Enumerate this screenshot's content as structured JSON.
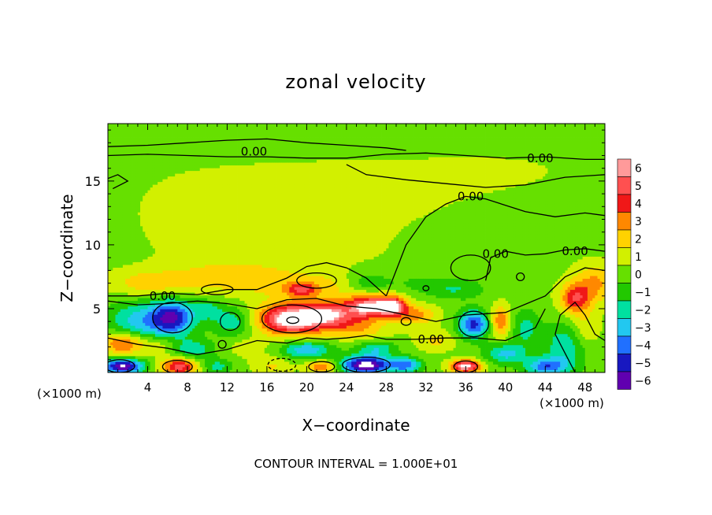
{
  "chart_data": {
    "type": "heatmap",
    "title": "zonal velocity",
    "xlabel": "X−coordinate",
    "ylabel": "Z−coordinate",
    "x_unit_label_left": "(×1000 m)",
    "x_unit_label_right": "(×1000 m)",
    "xlim": [
      0,
      50
    ],
    "ylim": [
      0,
      19.5
    ],
    "x_ticks": [
      4,
      8,
      12,
      16,
      20,
      24,
      28,
      32,
      36,
      40,
      44,
      48
    ],
    "y_ticks": [
      5,
      10,
      15
    ],
    "footer": "CONTOUR INTERVAL = 1.000E+01",
    "colorbar": {
      "levels": [
        6,
        5,
        4,
        3,
        2,
        1,
        0,
        -1,
        -2,
        -3,
        -4,
        -5,
        -6
      ],
      "labels": [
        "6",
        "5",
        "4",
        "3",
        "2",
        "1",
        "0",
        "−1",
        "−2",
        "−3",
        "−4",
        "−5",
        "−6"
      ],
      "colors": [
        "#ff9a9a",
        "#ff5050",
        "#f01818",
        "#ff8800",
        "#ffd200",
        "#d2f000",
        "#66e000",
        "#22c800",
        "#00e0a0",
        "#22c8f0",
        "#2070ff",
        "#1818c0",
        "#6000b0"
      ]
    },
    "contour_label": "0.00",
    "contour_labels": [
      {
        "x": 14.7,
        "z": 17.3,
        "text": "0.00"
      },
      {
        "x": 43.5,
        "z": 16.8,
        "text": "0.00"
      },
      {
        "x": 36.5,
        "z": 13.8,
        "text": "0.00"
      },
      {
        "x": 39.0,
        "z": 9.3,
        "text": "0.00"
      },
      {
        "x": 47.0,
        "z": 9.5,
        "text": "0.00"
      },
      {
        "x": 5.5,
        "z": 6.0,
        "text": "0.00"
      },
      {
        "x": 32.5,
        "z": 2.6,
        "text": "0.00"
      }
    ],
    "features": [
      {
        "x": 25,
        "z": 9,
        "rx": 28,
        "rz": 8,
        "v": 0.4
      },
      {
        "x": 15,
        "z": 11,
        "rx": 10,
        "rz": 4,
        "v": 0.6
      },
      {
        "x": 8,
        "z": 13,
        "rx": 6,
        "rz": 3,
        "v": 0.3
      },
      {
        "x": 22,
        "z": 14.5,
        "rx": 14,
        "rz": 2.5,
        "v": 0.5
      },
      {
        "x": 40,
        "z": 16,
        "rx": 12,
        "rz": 2,
        "v": 0.4
      },
      {
        "x": 12,
        "z": 7.5,
        "rx": 6,
        "rz": 1.2,
        "v": 1.6
      },
      {
        "x": 4,
        "z": 7,
        "rx": 4,
        "rz": 1,
        "v": 1.8
      },
      {
        "x": 21,
        "z": 6.8,
        "rx": 6,
        "rz": 1,
        "v": 1.5
      },
      {
        "x": 30,
        "z": 7.0,
        "rx": 6,
        "rz": 1,
        "v": -1.0
      },
      {
        "x": 26,
        "z": 6.8,
        "rx": 2,
        "rz": 1,
        "v": -1.8
      },
      {
        "x": 35,
        "z": 6.5,
        "rx": 3,
        "rz": 0.8,
        "v": -1.5
      },
      {
        "x": 49,
        "z": 7,
        "rx": 2,
        "rz": 1.5,
        "v": 2.5
      },
      {
        "x": 47,
        "z": 5.8,
        "rx": 1.5,
        "rz": 1.2,
        "v": 4
      },
      {
        "x": 6.5,
        "z": 4.3,
        "rx": 2.2,
        "rz": 1.4,
        "v": -5.5
      },
      {
        "x": 3,
        "z": 4,
        "rx": 3,
        "rz": 1.6,
        "v": -3
      },
      {
        "x": 12.5,
        "z": 4,
        "rx": 2,
        "rz": 1.2,
        "v": -2.5
      },
      {
        "x": 10,
        "z": 5,
        "rx": 1.5,
        "rz": 0.8,
        "v": -2
      },
      {
        "x": 18.5,
        "z": 4.2,
        "rx": 3.3,
        "rz": 1.2,
        "v": 7
      },
      {
        "x": 19.5,
        "z": 6.5,
        "rx": 1.5,
        "rz": 0.5,
        "v": 3
      },
      {
        "x": 22.5,
        "z": 4.6,
        "rx": 2.5,
        "rz": 1,
        "v": 4.5
      },
      {
        "x": 26,
        "z": 5.2,
        "rx": 2,
        "rz": 1,
        "v": 5.5
      },
      {
        "x": 28.5,
        "z": 5.2,
        "rx": 1.5,
        "rz": 0.8,
        "v": 6.5
      },
      {
        "x": 31,
        "z": 4.5,
        "rx": 2,
        "rz": 0.8,
        "v": 2.5
      },
      {
        "x": 25,
        "z": 3.4,
        "rx": 3,
        "rz": 0.8,
        "v": 2
      },
      {
        "x": 36.8,
        "z": 3.8,
        "rx": 1.6,
        "rz": 1.1,
        "v": -5
      },
      {
        "x": 39.5,
        "z": 4,
        "rx": 1,
        "rz": 1.2,
        "v": 3.5
      },
      {
        "x": 42,
        "z": 3.5,
        "rx": 1.5,
        "rz": 1.5,
        "v": -2
      },
      {
        "x": 46,
        "z": 2,
        "rx": 2,
        "rz": 2,
        "v": -2.5
      },
      {
        "x": 48,
        "z": 3.5,
        "rx": 1.5,
        "rz": 1.5,
        "v": 1.5
      },
      {
        "x": 1.5,
        "z": 2.3,
        "rx": 2,
        "rz": 0.9,
        "v": 4
      },
      {
        "x": 5,
        "z": 2.2,
        "rx": 2,
        "rz": 0.8,
        "v": 1.5
      },
      {
        "x": 8.5,
        "z": 1.8,
        "rx": 2,
        "rz": 0.8,
        "v": -2.5
      },
      {
        "x": 14,
        "z": 2,
        "rx": 2,
        "rz": 0.8,
        "v": 1
      },
      {
        "x": 20,
        "z": 1.8,
        "rx": 2.5,
        "rz": 0.7,
        "v": -3.5
      },
      {
        "x": 27,
        "z": 1.9,
        "rx": 2,
        "rz": 0.6,
        "v": -2.5
      },
      {
        "x": 33,
        "z": 2.5,
        "rx": 2,
        "rz": 0.8,
        "v": 1.5
      },
      {
        "x": 40,
        "z": 1.5,
        "rx": 2,
        "rz": 0.8,
        "v": -3
      },
      {
        "x": 1.5,
        "z": 0.5,
        "rx": 2,
        "rz": 0.6,
        "v": -6.5
      },
      {
        "x": 7.2,
        "z": 0.5,
        "rx": 1.8,
        "rz": 0.7,
        "v": 5
      },
      {
        "x": 11,
        "z": 0.5,
        "rx": 1.5,
        "rz": 0.6,
        "v": -2
      },
      {
        "x": 16.5,
        "z": 0.5,
        "rx": 2,
        "rz": 0.8,
        "v": 1.5
      },
      {
        "x": 21.5,
        "z": 0.5,
        "rx": 1.5,
        "rz": 0.5,
        "v": 3.5
      },
      {
        "x": 26,
        "z": 0.6,
        "rx": 2.5,
        "rz": 0.7,
        "v": -7
      },
      {
        "x": 30,
        "z": 0.6,
        "rx": 1.5,
        "rz": 0.6,
        "v": -4
      },
      {
        "x": 36,
        "z": 0.5,
        "rx": 1.5,
        "rz": 0.5,
        "v": 6.5
      },
      {
        "x": 44,
        "z": 0.5,
        "rx": 2,
        "rz": 0.7,
        "v": -4
      }
    ],
    "contour_lines": [
      [
        [
          0,
          17.0
        ],
        [
          4,
          17.1
        ],
        [
          8,
          17.0
        ],
        [
          12,
          16.9
        ],
        [
          16,
          16.9
        ],
        [
          20,
          16.8
        ],
        [
          24,
          16.8
        ],
        [
          28,
          17.1
        ],
        [
          32,
          17.2
        ],
        [
          36,
          17.0
        ],
        [
          40,
          16.8
        ],
        [
          44,
          16.9
        ],
        [
          48,
          16.7
        ],
        [
          50,
          16.7
        ]
      ],
      [
        [
          0,
          17.7
        ],
        [
          4,
          17.8
        ],
        [
          8,
          18.0
        ],
        [
          12,
          18.2
        ],
        [
          16,
          18.3
        ],
        [
          20,
          18.0
        ],
        [
          24,
          17.8
        ],
        [
          28,
          17.6
        ],
        [
          30,
          17.4
        ]
      ],
      [
        [
          24,
          16.3
        ],
        [
          26,
          15.5
        ],
        [
          30,
          15.1
        ],
        [
          34,
          14.8
        ],
        [
          38,
          14.5
        ],
        [
          42,
          14.7
        ],
        [
          46,
          15.3
        ],
        [
          50,
          15.5
        ]
      ],
      [
        [
          0,
          15.2
        ],
        [
          1,
          15.5
        ],
        [
          2,
          15.0
        ],
        [
          0.5,
          14.4
        ]
      ],
      [
        [
          28,
          6.0
        ],
        [
          30,
          10.0
        ],
        [
          32,
          12.2
        ],
        [
          34,
          13.2
        ],
        [
          36,
          13.8
        ],
        [
          38,
          13.6
        ],
        [
          42,
          12.6
        ],
        [
          45,
          12.2
        ],
        [
          48,
          12.5
        ],
        [
          50,
          12.3
        ]
      ],
      [
        [
          38,
          7.2
        ],
        [
          38.5,
          9.0
        ],
        [
          40,
          9.5
        ],
        [
          42,
          9.2
        ],
        [
          44,
          9.3
        ],
        [
          46,
          9.6
        ],
        [
          48,
          9.7
        ],
        [
          50,
          9.5
        ]
      ],
      [
        [
          0,
          6.0
        ],
        [
          3,
          6.0
        ],
        [
          6,
          6.2
        ],
        [
          9,
          6.1
        ],
        [
          12,
          6.5
        ],
        [
          15,
          6.5
        ],
        [
          18,
          7.4
        ],
        [
          20,
          8.3
        ],
        [
          22,
          8.6
        ],
        [
          24,
          8.2
        ],
        [
          26,
          7.4
        ],
        [
          28,
          6.0
        ]
      ],
      [
        [
          0,
          5.6
        ],
        [
          3,
          5.3
        ],
        [
          6,
          5.4
        ],
        [
          9,
          5.6
        ],
        [
          12,
          5.4
        ],
        [
          15,
          5.0
        ],
        [
          18,
          5.7
        ],
        [
          21,
          5.8
        ],
        [
          24,
          5.2
        ],
        [
          27,
          5.0
        ],
        [
          30,
          4.5
        ],
        [
          33,
          4.0
        ],
        [
          36,
          4.5
        ],
        [
          40,
          4.7
        ],
        [
          44,
          6.0
        ],
        [
          46,
          7.5
        ],
        [
          48,
          8.2
        ],
        [
          50,
          8.0
        ]
      ],
      [
        [
          0,
          2.7
        ],
        [
          3,
          2.2
        ],
        [
          6,
          1.9
        ],
        [
          9,
          1.4
        ],
        [
          12,
          1.8
        ],
        [
          15,
          2.5
        ],
        [
          18,
          2.3
        ],
        [
          20,
          2.7
        ],
        [
          22,
          2.6
        ],
        [
          24,
          2.7
        ],
        [
          26,
          2.9
        ],
        [
          28,
          2.6
        ],
        [
          31,
          2.6
        ],
        [
          34,
          2.7
        ],
        [
          37,
          2.7
        ],
        [
          40,
          2.5
        ],
        [
          43,
          3.5
        ],
        [
          44,
          5.0
        ]
      ],
      [
        [
          47,
          0.0
        ],
        [
          46,
          1.5
        ],
        [
          45,
          3.0
        ],
        [
          45.5,
          4.5
        ],
        [
          47,
          5.5
        ],
        [
          48,
          4.5
        ],
        [
          49,
          3.0
        ],
        [
          50,
          2.5
        ]
      ]
    ],
    "zero_loops": [
      {
        "x": 6.5,
        "z": 4.3,
        "rx": 2.0,
        "rz": 1.2
      },
      {
        "x": 18.5,
        "z": 4.2,
        "rx": 3.0,
        "rz": 1.1
      },
      {
        "x": 18.6,
        "z": 4.1,
        "rx": 0.6,
        "rz": 0.25
      },
      {
        "x": 36.8,
        "z": 3.8,
        "rx": 1.5,
        "rz": 1.0
      },
      {
        "x": 1.2,
        "z": 0.5,
        "rx": 1.5,
        "rz": 0.5
      },
      {
        "x": 7.0,
        "z": 0.45,
        "rx": 1.5,
        "rz": 0.5
      },
      {
        "x": 26,
        "z": 0.6,
        "rx": 2.4,
        "rz": 0.6
      },
      {
        "x": 36,
        "z": 0.45,
        "rx": 1.2,
        "rz": 0.45
      },
      {
        "x": 21.5,
        "z": 0.45,
        "rx": 1.3,
        "rz": 0.4
      },
      {
        "x": 12.3,
        "z": 4.0,
        "rx": 1.0,
        "rz": 0.7
      },
      {
        "x": 30.0,
        "z": 4.0,
        "rx": 0.5,
        "rz": 0.3
      },
      {
        "x": 11.5,
        "z": 2.2,
        "rx": 0.4,
        "rz": 0.3
      },
      {
        "x": 41.5,
        "z": 7.5,
        "rx": 0.4,
        "rz": 0.3
      },
      {
        "x": 32.0,
        "z": 6.6,
        "rx": 0.3,
        "rz": 0.2
      },
      {
        "x": 36.5,
        "z": 8.2,
        "rx": 2.0,
        "rz": 1.0
      },
      {
        "x": 21,
        "z": 7.2,
        "rx": 2.0,
        "rz": 0.6
      },
      {
        "x": 11,
        "z": 6.5,
        "rx": 1.6,
        "rz": 0.4
      }
    ],
    "dashed_loops": [
      {
        "x": 17.5,
        "z": 0.6,
        "rx": 1.4,
        "rz": 0.5
      }
    ]
  }
}
